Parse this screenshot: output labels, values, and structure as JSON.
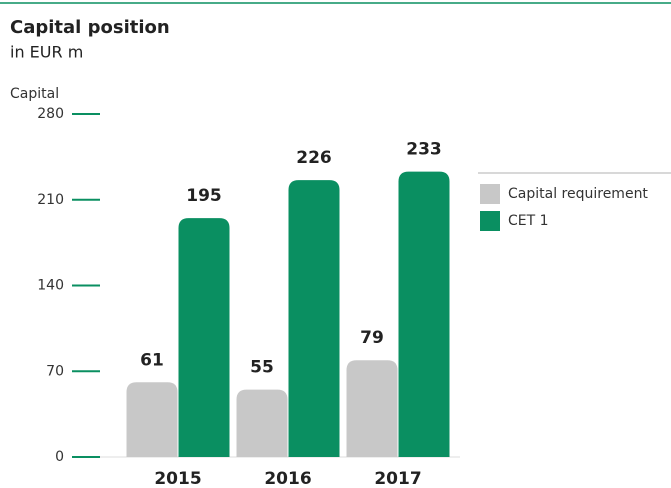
{
  "chart_data": {
    "type": "bar",
    "title": "Capital position",
    "subtitle": "in EUR m",
    "y_label": "Capital",
    "categories": [
      "2015",
      "2016",
      "2017"
    ],
    "series": [
      {
        "name": "Capital requirement",
        "color": "#c8c8c8",
        "values": [
          61,
          55,
          79
        ]
      },
      {
        "name": "CET 1",
        "color": "#0a8f61",
        "values": [
          195,
          226,
          233
        ]
      }
    ],
    "ylim": [
      0,
      280
    ],
    "yticks": [
      0,
      70,
      140,
      210,
      280
    ],
    "tick_color": "#0a8f61",
    "legend": "right"
  }
}
